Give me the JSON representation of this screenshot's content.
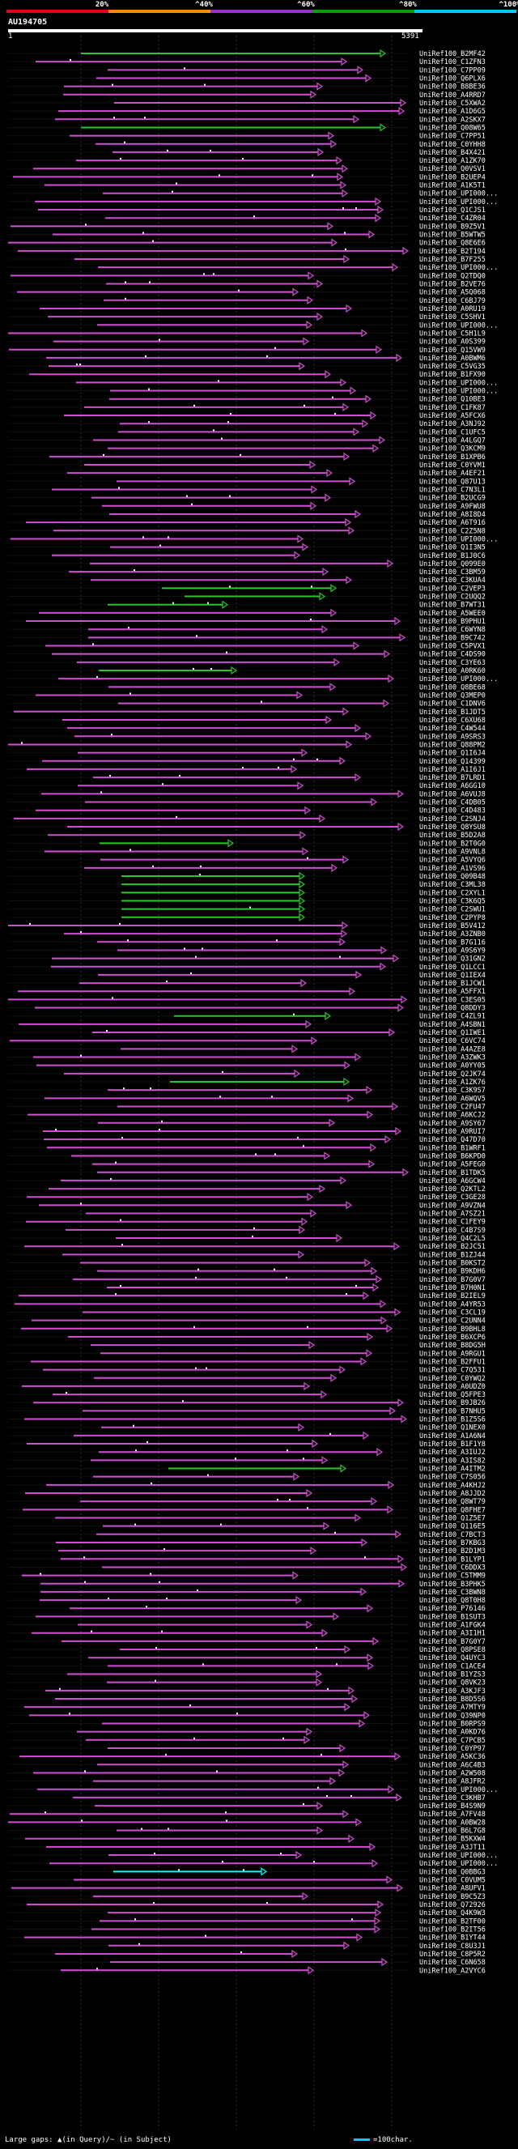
{
  "scale": {
    "labels": [
      "20%",
      "^40%",
      "^60%",
      "^80%",
      "^100%"
    ],
    "colors": [
      "#e2001a",
      "#ff8c00",
      "#9b30d0",
      "#00a000",
      "#00c8ff"
    ]
  },
  "query": {
    "id": "AU194705",
    "start": "1",
    "end": "5391"
  },
  "colors": {
    "magenta": "#d24fd3",
    "green": "#28c828",
    "cyan": "#00ffff",
    "gap": "#ffffff"
  },
  "hits": [
    "UniRef100_B2MF42",
    "UniRef100_C1ZFN3",
    "UniRef100_C7PP09",
    "UniRef100_Q6PLX6",
    "UniRef100_B8BE36",
    "UniRef100_A4RRD7",
    "UniRef100_C5XWA2",
    "UniRef100_A1D6G5",
    "UniRef100_A2SKX7",
    "UniRef100_Q08W65",
    "UniRef100_C7PP51",
    "UniRef100_C0YHH8",
    "UniRef100_B4X421",
    "UniRef100_A1ZK70",
    "UniRef100_Q0VSV1",
    "UniRef100_B2UEP4",
    "UniRef100_A1K5T1",
    "UniRef100_UPI000...",
    "UniRef100_UPI000...",
    "UniRef100_Q1CJS1",
    "UniRef100_C4ZR04",
    "UniRef100_B9Z5V1",
    "UniRef100_B5WTW5",
    "UniRef100_Q8E6E6",
    "UniRef100_B2T194",
    "UniRef100_B7F255",
    "UniRef100_UPI000...",
    "UniRef100_Q2TDQ0",
    "UniRef100_B2VE76",
    "UniRef100_A5Q068",
    "UniRef100_C6BJ79",
    "UniRef100_A0RU19",
    "UniRef100_C5SHV1",
    "UniRef100_UPI000...",
    "UniRef100_C5H1L9",
    "UniRef100_A0S399",
    "UniRef100_Q15VW9",
    "UniRef100_A0BWM6",
    "UniRef100_C5VG35",
    "UniRef100_B1FX90",
    "UniRef100_UPI000...",
    "UniRef100_UPI000...",
    "UniRef100_Q10BE3",
    "UniRef100_C1FK87",
    "UniRef100_A5FCX6",
    "UniRef100_A3NJ92",
    "UniRef100_C1UFC5",
    "UniRef100_A4LGQ7",
    "UniRef100_Q3KCM9",
    "UniRef100_B1XPB6",
    "UniRef100_C0YVM1",
    "UniRef100_A4EF21",
    "UniRef100_Q87U13",
    "UniRef100_C7N3L1",
    "UniRef100_B2UCG9",
    "UniRef100_A9FWU8",
    "UniRef100_A8I8D4",
    "UniRef100_A6T916",
    "UniRef100_C2Z5N8",
    "UniRef100_UPI000...",
    "UniRef100_Q1I3N5",
    "UniRef100_B1J0C6",
    "UniRef100_Q099E0",
    "UniRef100_C3BM59",
    "UniRef100_C3KUA4",
    "UniRef100_C2VEP3",
    "UniRef100_C2UQQ2",
    "UniRef100_B7WT31",
    "UniRef100_A5WEE0",
    "UniRef100_B9PHU1",
    "UniRef100_C6WYN8",
    "UniRef100_B9C742",
    "UniRef100_C5PVX1",
    "UniRef100_C4DS90",
    "UniRef100_C3YE63",
    "UniRef100_A0RK60",
    "UniRef100_UPI000...",
    "UniRef100_Q8BE68",
    "UniRef100_Q3MEP0",
    "UniRef100_C1DNV6",
    "UniRef100_B1JDT5",
    "UniRef100_C6XU68",
    "UniRef100_C4W544",
    "UniRef100_A9SRS3",
    "UniRef100_Q88PM2",
    "UniRef100_Q1I6J4",
    "UniRef100_Q14399",
    "UniRef100_A1I6J1",
    "UniRef100_B7LRD1",
    "UniRef100_A6GG10",
    "UniRef100_A6VUJ8",
    "UniRef100_C4DB05",
    "UniRef100_C4D483",
    "UniRef100_C2SNJ4",
    "UniRef100_Q8YSU8",
    "UniRef100_B5D2A8",
    "UniRef100_B2T0G0",
    "UniRef100_A9VNL8",
    "UniRef100_A5VYQ6",
    "UniRef100_A1VS96",
    "UniRef100_Q09B48",
    "UniRef100_C3ML38",
    "UniRef100_C2XYL1",
    "UniRef100_C3K6Q5",
    "UniRef100_C2SWU1",
    "UniRef100_C2PYP8",
    "UniRef100_B5V412",
    "UniRef100_A3ZNB0",
    "UniRef100_B7G116",
    "UniRef100_A9S6Y9",
    "UniRef100_Q31GN2",
    "UniRef100_Q1LCC1",
    "UniRef100_Q1IEX4",
    "UniRef100_B1JCW1",
    "UniRef100_A5FFX1",
    "UniRef100_C3ES05",
    "UniRef100_Q8DDY3",
    "UniRef100_C4ZL91",
    "UniRef100_A4SBN1",
    "UniRef100_Q1IWE1",
    "UniRef100_C6VC74",
    "UniRef100_A4AZE8",
    "UniRef100_A3ZWK3",
    "UniRef100_A0YY05",
    "UniRef100_Q2JK74",
    "UniRef100_A1ZK76",
    "UniRef100_C3K9S7",
    "UniRef100_A6WQV5",
    "UniRef100_C2FU47",
    "UniRef100_A6KCJ2",
    "UniRef100_A9SY67",
    "UniRef100_A9RUI7",
    "UniRef100_Q47D70",
    "UniRef100_B1WRF1",
    "UniRef100_B6KPD0",
    "UniRef100_A5FEG0",
    "UniRef100_B1TDK5",
    "UniRef100_A6GCW4",
    "UniRef100_Q2KTL2",
    "UniRef100_C3GE28",
    "UniRef100_A9VZN4",
    "UniRef100_A7SZ21",
    "UniRef100_C1FEY9",
    "UniRef100_C4B7S9",
    "UniRef100_Q4C2L5",
    "UniRef100_B2JC51",
    "UniRef100_B1ZJ44",
    "UniRef100_B0KST2",
    "UniRef100_B9KDH6",
    "UniRef100_B7G0V7",
    "UniRef100_B7H0N1",
    "UniRef100_B2IEL9",
    "UniRef100_A4YR53",
    "UniRef100_C3CL19",
    "UniRef100_C2UNN4",
    "UniRef100_B9BHL8",
    "UniRef100_B6XCP6",
    "UniRef100_B8DG5H",
    "UniRef100_A9RGU1",
    "UniRef100_B2FFU1",
    "UniRef100_C7Q531",
    "UniRef100_C0YWQ2",
    "UniRef100_A0UDZ0",
    "UniRef100_Q5FPE3",
    "UniRef100_B9JB26",
    "UniRef100_B7NHU5",
    "UniRef100_B1Z5S6",
    "UniRef100_Q1NEX0",
    "UniRef100_A1A6N4",
    "UniRef100_B1F1Y8",
    "UniRef100_A3IUJ2",
    "UniRef100_A3IS82",
    "UniRef100_A4ITM2",
    "UniRef100_C7S056",
    "UniRef100_A4KHJ2",
    "UniRef100_A8JJD2",
    "UniRef100_Q8WT79",
    "UniRef100_Q8FHE7",
    "UniRef100_Q1Z5E7",
    "UniRef100_Q116E5",
    "UniRef100_C7BCT3",
    "UniRef100_B7KBG3",
    "UniRef100_B2D1M3",
    "UniRef100_B1LYP1",
    "UniRef100_C6DDX3",
    "UniRef100_C5TMM9",
    "UniRef100_B3PHK5",
    "UniRef100_C3BWN8",
    "UniRef100_Q8T0H8",
    "UniRef100_P76146",
    "UniRef100_B1SUT3",
    "UniRef100_A1FGK4",
    "UniRef100_A3I1H1",
    "UniRef100_B7G0Y7",
    "UniRef100_Q8PSE8",
    "UniRef100_Q4UYC3",
    "UniRef100_C1ACE4",
    "UniRef100_B1YZS3",
    "UniRef100_Q8VK23",
    "UniRef100_A3KJF3",
    "UniRef100_B8D5S6",
    "UniRef100_A7MTY9",
    "UniRef100_Q39NP0",
    "UniRef100_B0RPS9",
    "UniRef100_A0KD76",
    "UniRef100_C7PCB5",
    "UniRef100_C0YP97",
    "UniRef100_A5KC36",
    "UniRef100_A6C4B3",
    "UniRef100_A2W508",
    "UniRef100_A8JFR2",
    "UniRef100_UPI000...",
    "UniRef100_C3KHB7",
    "UniRef100_B4S9N9",
    "UniRef100_A7FV48",
    "UniRef100_A0BW28",
    "UniRef100_B6L7G8",
    "UniRef100_B5KXW4",
    "UniRef100_A3JT11",
    "UniRef100_UPI000...",
    "UniRef100_UPI000...",
    "UniRef100_Q0BBG3",
    "UniRef100_C0VUM5",
    "UniRef100_A8UFV1",
    "UniRef100_B9C5Z3",
    "UniRef100_Q72926",
    "UniRef100_Q4K9W3",
    "UniRef100_B2TF00",
    "UniRef100_B2IT56",
    "UniRef100_B1YT44",
    "UniRef100_C8U3J1",
    "UniRef100_C8P5R2",
    "UniRef100_C6N658",
    "UniRef100_A2VYC6"
  ],
  "footer": {
    "gap_legend": "Large gaps: ▲(in Query)/~ (in Subject)",
    "scale_legend": "=100char."
  }
}
